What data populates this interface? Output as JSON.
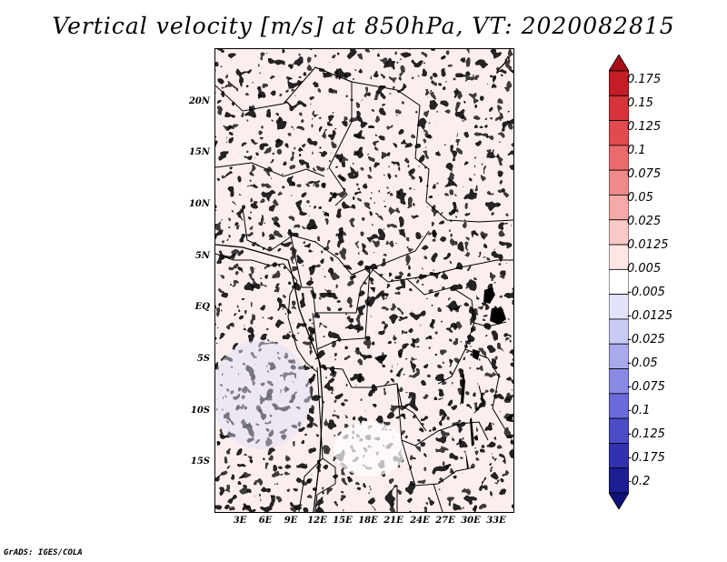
{
  "title": "Vertical velocity [m/s] at 850hPa, VT: 2020082815",
  "credit": "GrADS: IGES/COLA",
  "map": {
    "lat_labels": [
      "20N",
      "15N",
      "10N",
      "5N",
      "EQ",
      "5S",
      "10S",
      "15S"
    ],
    "lon_labels": [
      "3E",
      "6E",
      "9E",
      "12E",
      "15E",
      "18E",
      "21E",
      "24E",
      "27E",
      "30E",
      "33E"
    ]
  },
  "colorbar": {
    "labels": [
      "0.175",
      "0.15",
      "0.125",
      "0.1",
      "0.075",
      "0.05",
      "0.025",
      "0.0125",
      "0.005",
      "-0.005",
      "-0.0125",
      "-0.025",
      "-0.05",
      "-0.075",
      "-0.1",
      "-0.125",
      "-0.175",
      "-0.2"
    ],
    "colors": [
      "#a50f15",
      "#c41d25",
      "#d8333a",
      "#e34a4f",
      "#eb6a6c",
      "#f08a8a",
      "#f5a9a8",
      "#f9c9c7",
      "#fde6e4",
      "#ffffff",
      "#e3e3fb",
      "#c9c9f5",
      "#a9a9ee",
      "#8a8ae6",
      "#6a6adb",
      "#4c4cc9",
      "#3232b0",
      "#1d1d96",
      "#10107a"
    ]
  }
}
